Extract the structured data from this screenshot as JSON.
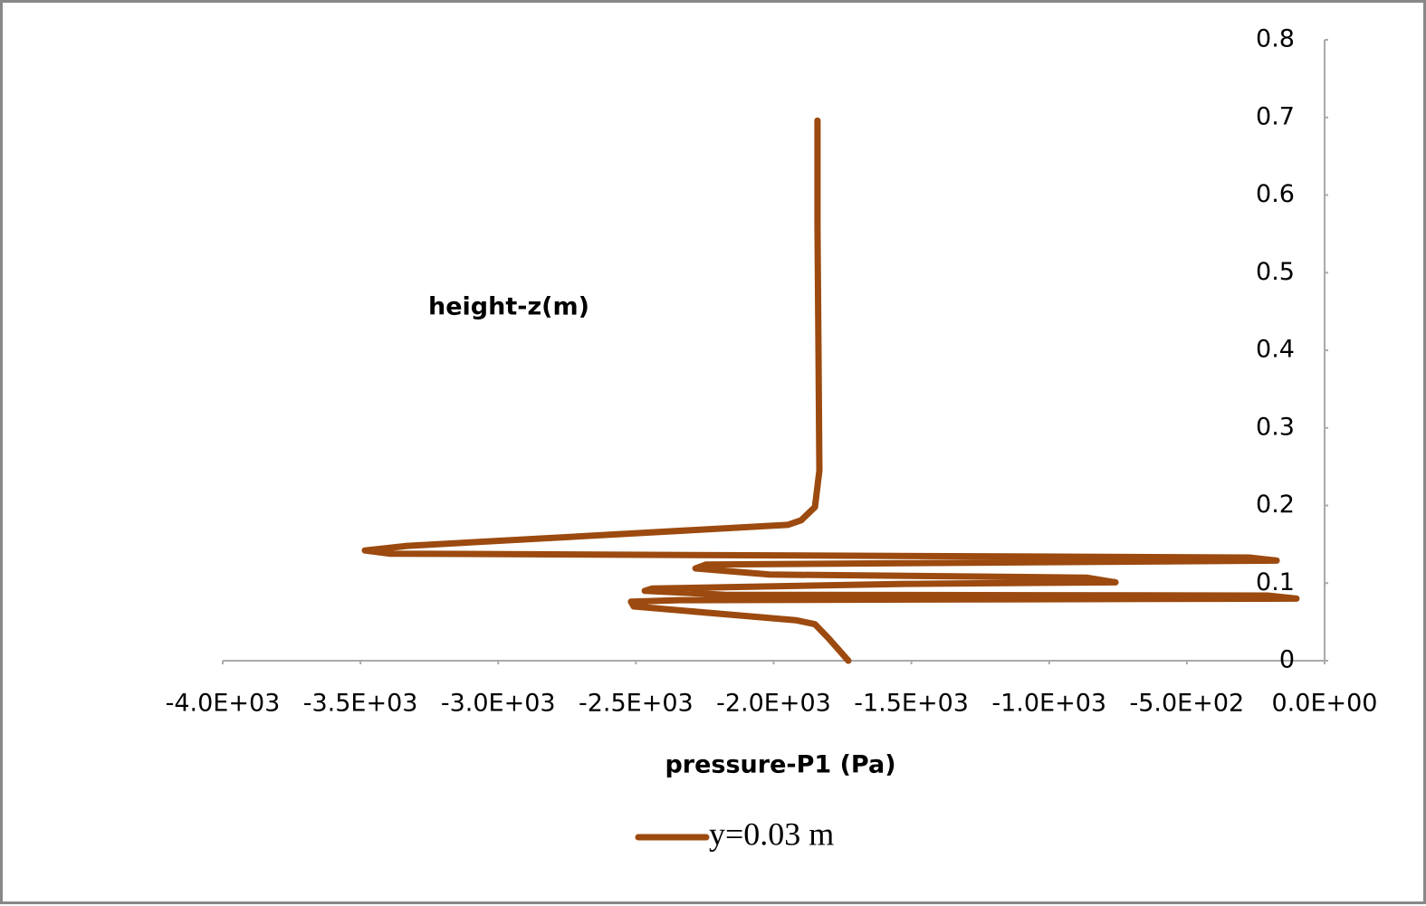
{
  "chart_data": {
    "type": "line",
    "x_label": "pressure-P1 (Pa)",
    "y_label": "height-z(m)",
    "x": [
      -1729,
      -1801,
      -1850,
      -1916,
      -2508,
      -2518,
      -2343,
      -102,
      -207,
      -2179,
      -2468,
      -2442,
      -1522,
      -759,
      -864,
      -2015,
      -2284,
      -2245,
      -174,
      -273,
      -3395,
      -3484,
      -3330,
      -1949,
      -1900,
      -1850,
      -1834,
      -1837,
      -1841,
      -1841
    ],
    "series": [
      {
        "name": "y=0.03 m",
        "color": "#9c4a0f",
        "values": [
          0,
          0.029,
          0.047,
          0.052,
          0.07,
          0.076,
          0.078,
          0.08,
          0.084,
          0.085,
          0.09,
          0.093,
          0.099,
          0.101,
          0.107,
          0.111,
          0.119,
          0.124,
          0.129,
          0.133,
          0.138,
          0.142,
          0.148,
          0.175,
          0.181,
          0.198,
          0.245,
          0.385,
          0.56,
          0.696
        ]
      }
    ],
    "xlim": [
      -4000,
      0
    ],
    "xticks": [
      {
        "value": -4000,
        "label": "-4.0E+03"
      },
      {
        "value": -3500,
        "label": "-3.5E+03"
      },
      {
        "value": -3000,
        "label": "-3.0E+03"
      },
      {
        "value": -2500,
        "label": "-2.5E+03"
      },
      {
        "value": -2000,
        "label": "-2.0E+03"
      },
      {
        "value": -1500,
        "label": "-1.5E+03"
      },
      {
        "value": -1000,
        "label": "-1.0E+03"
      },
      {
        "value": -500,
        "label": "-5.0E+02"
      },
      {
        "value": 0,
        "label": "0.0E+00"
      }
    ],
    "ylim": [
      0,
      0.8
    ],
    "yticks": [
      0,
      0.1,
      0.2,
      0.3,
      0.4,
      0.5,
      0.6,
      0.7,
      0.8
    ],
    "grid": false,
    "legend": "bottom"
  }
}
